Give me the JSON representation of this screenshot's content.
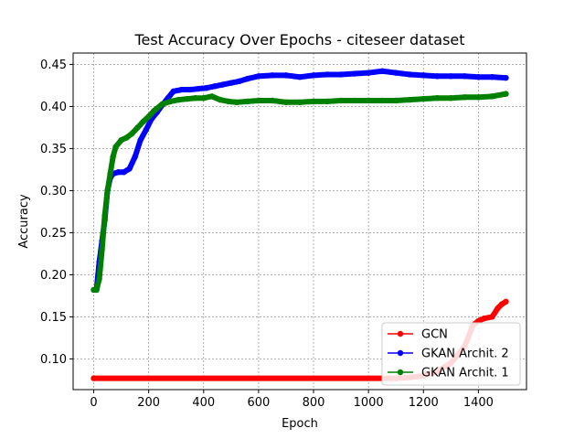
{
  "chart_data": {
    "type": "line",
    "title": "Test Accuracy Over Epochs - citeseer dataset",
    "xlabel": "Epoch",
    "ylabel": "Accuracy",
    "xlim": [
      -75,
      1575
    ],
    "ylim": [
      0.0635,
      0.4635
    ],
    "xticks": [
      0,
      200,
      400,
      600,
      800,
      1000,
      1200,
      1400
    ],
    "yticks": [
      0.1,
      0.15,
      0.2,
      0.25,
      0.3,
      0.35,
      0.4,
      0.45
    ],
    "grid": true,
    "legend_position": "lower right",
    "series": [
      {
        "name": "GCN",
        "color": "#ff0000",
        "points": [
          [
            0,
            0.077
          ],
          [
            1100,
            0.077
          ],
          [
            1150,
            0.078
          ],
          [
            1200,
            0.08
          ],
          [
            1250,
            0.085
          ],
          [
            1300,
            0.095
          ],
          [
            1350,
            0.115
          ],
          [
            1380,
            0.14
          ],
          [
            1400,
            0.145
          ],
          [
            1420,
            0.148
          ],
          [
            1450,
            0.15
          ],
          [
            1470,
            0.16
          ],
          [
            1485,
            0.165
          ],
          [
            1500,
            0.168
          ]
        ]
      },
      {
        "name": "GKAN Archit. 2",
        "color": "#0000ff",
        "points": [
          [
            0,
            0.182
          ],
          [
            10,
            0.182
          ],
          [
            20,
            0.215
          ],
          [
            30,
            0.24
          ],
          [
            40,
            0.265
          ],
          [
            50,
            0.3
          ],
          [
            60,
            0.315
          ],
          [
            70,
            0.32
          ],
          [
            90,
            0.322
          ],
          [
            110,
            0.322
          ],
          [
            130,
            0.326
          ],
          [
            150,
            0.34
          ],
          [
            170,
            0.36
          ],
          [
            190,
            0.372
          ],
          [
            210,
            0.385
          ],
          [
            230,
            0.393
          ],
          [
            250,
            0.402
          ],
          [
            270,
            0.41
          ],
          [
            290,
            0.418
          ],
          [
            320,
            0.42
          ],
          [
            350,
            0.42
          ],
          [
            380,
            0.421
          ],
          [
            410,
            0.422
          ],
          [
            440,
            0.424
          ],
          [
            470,
            0.426
          ],
          [
            500,
            0.428
          ],
          [
            530,
            0.43
          ],
          [
            560,
            0.433
          ],
          [
            600,
            0.436
          ],
          [
            650,
            0.437
          ],
          [
            700,
            0.437
          ],
          [
            750,
            0.435
          ],
          [
            800,
            0.437
          ],
          [
            850,
            0.438
          ],
          [
            900,
            0.438
          ],
          [
            950,
            0.439
          ],
          [
            1000,
            0.44
          ],
          [
            1050,
            0.442
          ],
          [
            1100,
            0.44
          ],
          [
            1150,
            0.438
          ],
          [
            1200,
            0.437
          ],
          [
            1250,
            0.436
          ],
          [
            1300,
            0.436
          ],
          [
            1350,
            0.436
          ],
          [
            1400,
            0.435
          ],
          [
            1450,
            0.435
          ],
          [
            1500,
            0.434
          ]
        ]
      },
      {
        "name": "GKAN Archit. 1",
        "color": "#008000",
        "points": [
          [
            0,
            0.182
          ],
          [
            10,
            0.182
          ],
          [
            20,
            0.195
          ],
          [
            30,
            0.23
          ],
          [
            40,
            0.27
          ],
          [
            50,
            0.3
          ],
          [
            60,
            0.32
          ],
          [
            70,
            0.34
          ],
          [
            80,
            0.352
          ],
          [
            100,
            0.36
          ],
          [
            120,
            0.363
          ],
          [
            140,
            0.368
          ],
          [
            160,
            0.375
          ],
          [
            180,
            0.382
          ],
          [
            200,
            0.388
          ],
          [
            220,
            0.395
          ],
          [
            250,
            0.403
          ],
          [
            280,
            0.406
          ],
          [
            310,
            0.408
          ],
          [
            340,
            0.409
          ],
          [
            370,
            0.41
          ],
          [
            400,
            0.41
          ],
          [
            430,
            0.412
          ],
          [
            460,
            0.408
          ],
          [
            490,
            0.406
          ],
          [
            520,
            0.405
          ],
          [
            560,
            0.406
          ],
          [
            600,
            0.407
          ],
          [
            650,
            0.407
          ],
          [
            700,
            0.405
          ],
          [
            750,
            0.405
          ],
          [
            800,
            0.406
          ],
          [
            850,
            0.406
          ],
          [
            900,
            0.407
          ],
          [
            950,
            0.407
          ],
          [
            1000,
            0.407
          ],
          [
            1050,
            0.407
          ],
          [
            1100,
            0.407
          ],
          [
            1150,
            0.408
          ],
          [
            1200,
            0.409
          ],
          [
            1250,
            0.41
          ],
          [
            1300,
            0.41
          ],
          [
            1350,
            0.411
          ],
          [
            1400,
            0.411
          ],
          [
            1450,
            0.412
          ],
          [
            1500,
            0.415
          ]
        ]
      }
    ]
  }
}
